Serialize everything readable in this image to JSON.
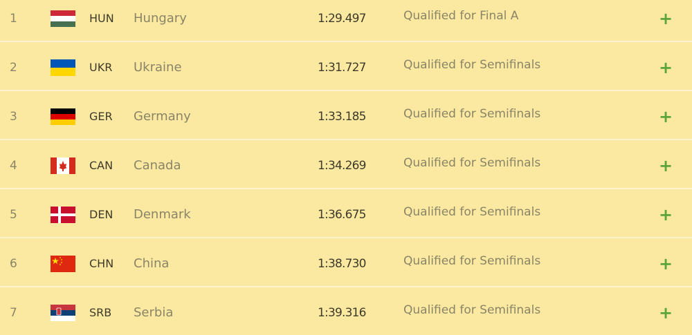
{
  "accent_color": "#5aa43a",
  "rows": [
    {
      "rank": "1",
      "flag": "hungary-flag",
      "code": "HUN",
      "country": "Hungary",
      "time": "1:29.497",
      "status": "Qualified for Final A",
      "expand_icon": "+"
    },
    {
      "rank": "2",
      "flag": "ukraine-flag",
      "code": "UKR",
      "country": "Ukraine",
      "time": "1:31.727",
      "status": "Qualified for Semifinals",
      "expand_icon": "+"
    },
    {
      "rank": "3",
      "flag": "germany-flag",
      "code": "GER",
      "country": "Germany",
      "time": "1:33.185",
      "status": "Qualified for Semifinals",
      "expand_icon": "+"
    },
    {
      "rank": "4",
      "flag": "canada-flag",
      "code": "CAN",
      "country": "Canada",
      "time": "1:34.269",
      "status": "Qualified for Semifinals",
      "expand_icon": "+"
    },
    {
      "rank": "5",
      "flag": "denmark-flag",
      "code": "DEN",
      "country": "Denmark",
      "time": "1:36.675",
      "status": "Qualified for Semifinals",
      "expand_icon": "+"
    },
    {
      "rank": "6",
      "flag": "china-flag",
      "code": "CHN",
      "country": "China",
      "time": "1:38.730",
      "status": "Qualified for Semifinals",
      "expand_icon": "+"
    },
    {
      "rank": "7",
      "flag": "serbia-flag",
      "code": "SRB",
      "country": "Serbia",
      "time": "1:39.316",
      "status": "Qualified for Semifinals",
      "expand_icon": "+"
    }
  ]
}
